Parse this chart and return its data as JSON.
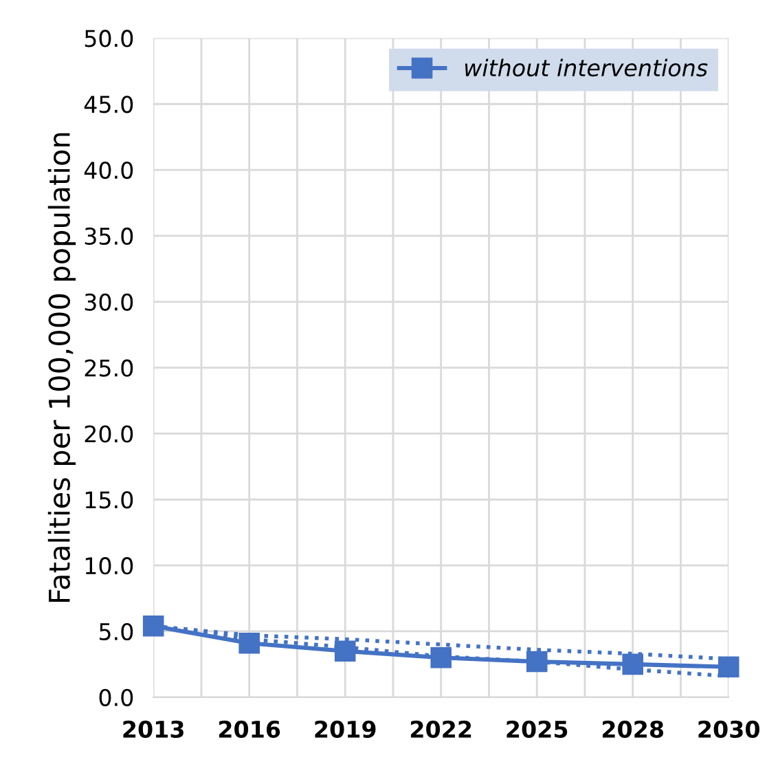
{
  "chart_data": {
    "type": "line",
    "ylabel": "Fatalities per 100,000 population",
    "categories": [
      "2013",
      "2016",
      "2019",
      "2022",
      "2025",
      "2028",
      "2030"
    ],
    "series": [
      {
        "name": "without interventions",
        "color": "#4472c4",
        "values": [
          5.4,
          4.1,
          3.5,
          3.0,
          2.7,
          2.5,
          2.3
        ],
        "marker": "square",
        "line_style": "solid"
      },
      {
        "color": "#4472c4",
        "values": [
          5.4,
          4.7,
          4.4,
          4.0,
          3.6,
          3.3,
          2.9
        ],
        "marker": "none",
        "line_style": "dotted"
      },
      {
        "color": "#4472c4",
        "values": [
          5.4,
          4.4,
          3.8,
          3.1,
          2.7,
          2.1,
          1.6
        ],
        "marker": "none",
        "line_style": "dotted"
      }
    ],
    "ylim": [
      0,
      50
    ],
    "yticks": [
      {
        "value": 0,
        "label": "0.0"
      },
      {
        "value": 5,
        "label": "5.0"
      },
      {
        "value": 10,
        "label": "10.0"
      },
      {
        "value": 15,
        "label": "15.0"
      },
      {
        "value": 20,
        "label": "20.0"
      },
      {
        "value": 25,
        "label": "25.0"
      },
      {
        "value": 30,
        "label": "30.0"
      },
      {
        "value": 35,
        "label": "35.0"
      },
      {
        "value": 40,
        "label": "40.0"
      },
      {
        "value": 45,
        "label": "45.0"
      },
      {
        "value": 50,
        "label": "50.0"
      }
    ],
    "grid": true,
    "legend": "top right"
  }
}
